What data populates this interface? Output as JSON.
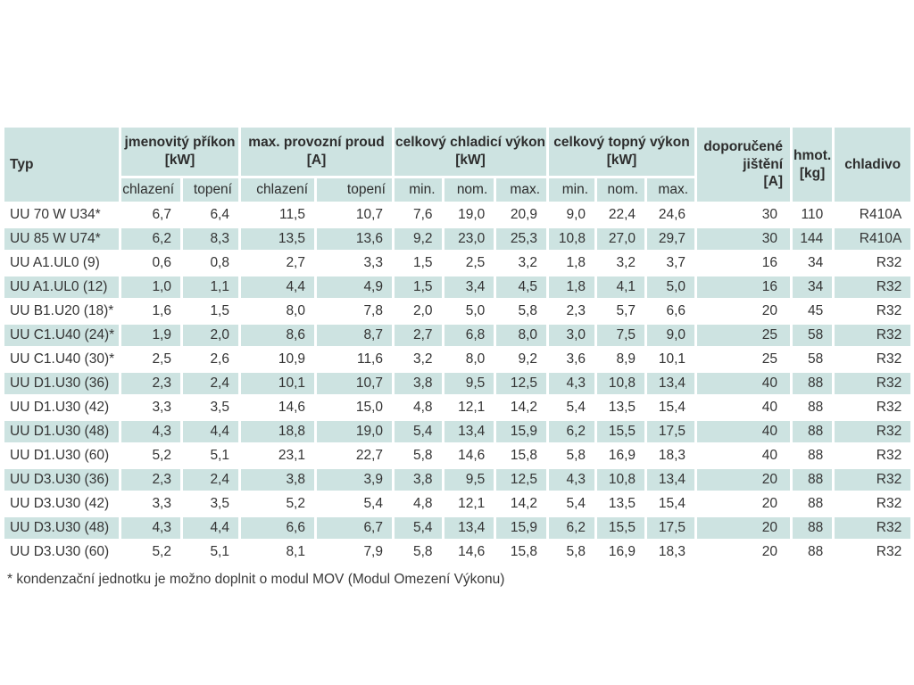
{
  "colors": {
    "cell_fill": "#cde3e1",
    "header_text": "#2d2d2d",
    "body_text": "#343434",
    "page_background": "#ffffff"
  },
  "table": {
    "header": {
      "typ": "Typ",
      "groups": [
        {
          "label": "jmenovitý příkon",
          "unit": "[kW]",
          "sub": [
            "chlazení",
            "topení"
          ]
        },
        {
          "label": "max. provozní proud",
          "unit": "[A]",
          "sub": [
            "chlazení",
            "topení"
          ]
        },
        {
          "label": "celkový chladicí výkon",
          "unit": "[kW]",
          "sub": [
            "min.",
            "nom.",
            "max."
          ]
        },
        {
          "label": "celkový topný výkon",
          "unit": "[kW]",
          "sub": [
            "min.",
            "nom.",
            "max."
          ]
        }
      ],
      "tail": [
        {
          "label": "doporučené jištění",
          "unit": "[A]"
        },
        {
          "label": "hmot.",
          "unit": "[kg]"
        },
        {
          "label": "chladivo",
          "unit": ""
        }
      ]
    },
    "rows": [
      {
        "typ": "UU 70 W U34*",
        "values": [
          "6,7",
          "6,4",
          "11,5",
          "10,7",
          "7,6",
          "19,0",
          "20,9",
          "9,0",
          "22,4",
          "24,6",
          "30",
          "110",
          "R410A"
        ]
      },
      {
        "typ": "UU 85 W U74*",
        "values": [
          "6,2",
          "8,3",
          "13,5",
          "13,6",
          "9,2",
          "23,0",
          "25,3",
          "10,8",
          "27,0",
          "29,7",
          "30",
          "144",
          "R410A"
        ]
      },
      {
        "typ": "UU A1.UL0 (9)",
        "values": [
          "0,6",
          "0,8",
          "2,7",
          "3,3",
          "1,5",
          "2,5",
          "3,2",
          "1,8",
          "3,2",
          "3,7",
          "16",
          "34",
          "R32"
        ]
      },
      {
        "typ": "UU A1.UL0 (12)",
        "values": [
          "1,0",
          "1,1",
          "4,4",
          "4,9",
          "1,5",
          "3,4",
          "4,5",
          "1,8",
          "4,1",
          "5,0",
          "16",
          "34",
          "R32"
        ]
      },
      {
        "typ": "UU B1.U20 (18)*",
        "values": [
          "1,6",
          "1,5",
          "8,0",
          "7,8",
          "2,0",
          "5,0",
          "5,8",
          "2,3",
          "5,7",
          "6,6",
          "20",
          "45",
          "R32"
        ]
      },
      {
        "typ": "UU C1.U40 (24)*",
        "values": [
          "1,9",
          "2,0",
          "8,6",
          "8,7",
          "2,7",
          "6,8",
          "8,0",
          "3,0",
          "7,5",
          "9,0",
          "25",
          "58",
          "R32"
        ]
      },
      {
        "typ": "UU C1.U40 (30)*",
        "values": [
          "2,5",
          "2,6",
          "10,9",
          "11,6",
          "3,2",
          "8,0",
          "9,2",
          "3,6",
          "8,9",
          "10,1",
          "25",
          "58",
          "R32"
        ]
      },
      {
        "typ": "UU D1.U30 (36)",
        "values": [
          "2,3",
          "2,4",
          "10,1",
          "10,7",
          "3,8",
          "9,5",
          "12,5",
          "4,3",
          "10,8",
          "13,4",
          "40",
          "88",
          "R32"
        ]
      },
      {
        "typ": "UU D1.U30 (42)",
        "values": [
          "3,3",
          "3,5",
          "14,6",
          "15,0",
          "4,8",
          "12,1",
          "14,2",
          "5,4",
          "13,5",
          "15,4",
          "40",
          "88",
          "R32"
        ]
      },
      {
        "typ": "UU D1.U30 (48)",
        "values": [
          "4,3",
          "4,4",
          "18,8",
          "19,0",
          "5,4",
          "13,4",
          "15,9",
          "6,2",
          "15,5",
          "17,5",
          "40",
          "88",
          "R32"
        ]
      },
      {
        "typ": "UU D1.U30 (60)",
        "values": [
          "5,2",
          "5,1",
          "23,1",
          "22,7",
          "5,8",
          "14,6",
          "15,8",
          "5,8",
          "16,9",
          "18,3",
          "40",
          "88",
          "R32"
        ]
      },
      {
        "typ": "UU D3.U30 (36)",
        "values": [
          "2,3",
          "2,4",
          "3,8",
          "3,9",
          "3,8",
          "9,5",
          "12,5",
          "4,3",
          "10,8",
          "13,4",
          "20",
          "88",
          "R32"
        ]
      },
      {
        "typ": "UU D3.U30 (42)",
        "values": [
          "3,3",
          "3,5",
          "5,2",
          "5,4",
          "4,8",
          "12,1",
          "14,2",
          "5,4",
          "13,5",
          "15,4",
          "20",
          "88",
          "R32"
        ]
      },
      {
        "typ": "UU D3.U30 (48)",
        "values": [
          "4,3",
          "4,4",
          "6,6",
          "6,7",
          "5,4",
          "13,4",
          "15,9",
          "6,2",
          "15,5",
          "17,5",
          "20",
          "88",
          "R32"
        ]
      },
      {
        "typ": "UU D3.U30 (60)",
        "values": [
          "5,2",
          "5,1",
          "8,1",
          "7,9",
          "5,8",
          "14,6",
          "15,8",
          "5,8",
          "16,9",
          "18,3",
          "20",
          "88",
          "R32"
        ]
      }
    ]
  },
  "footnote": "* kondenzační jednotku je možno doplnit o modul MOV (Modul Omezení Výkonu)"
}
